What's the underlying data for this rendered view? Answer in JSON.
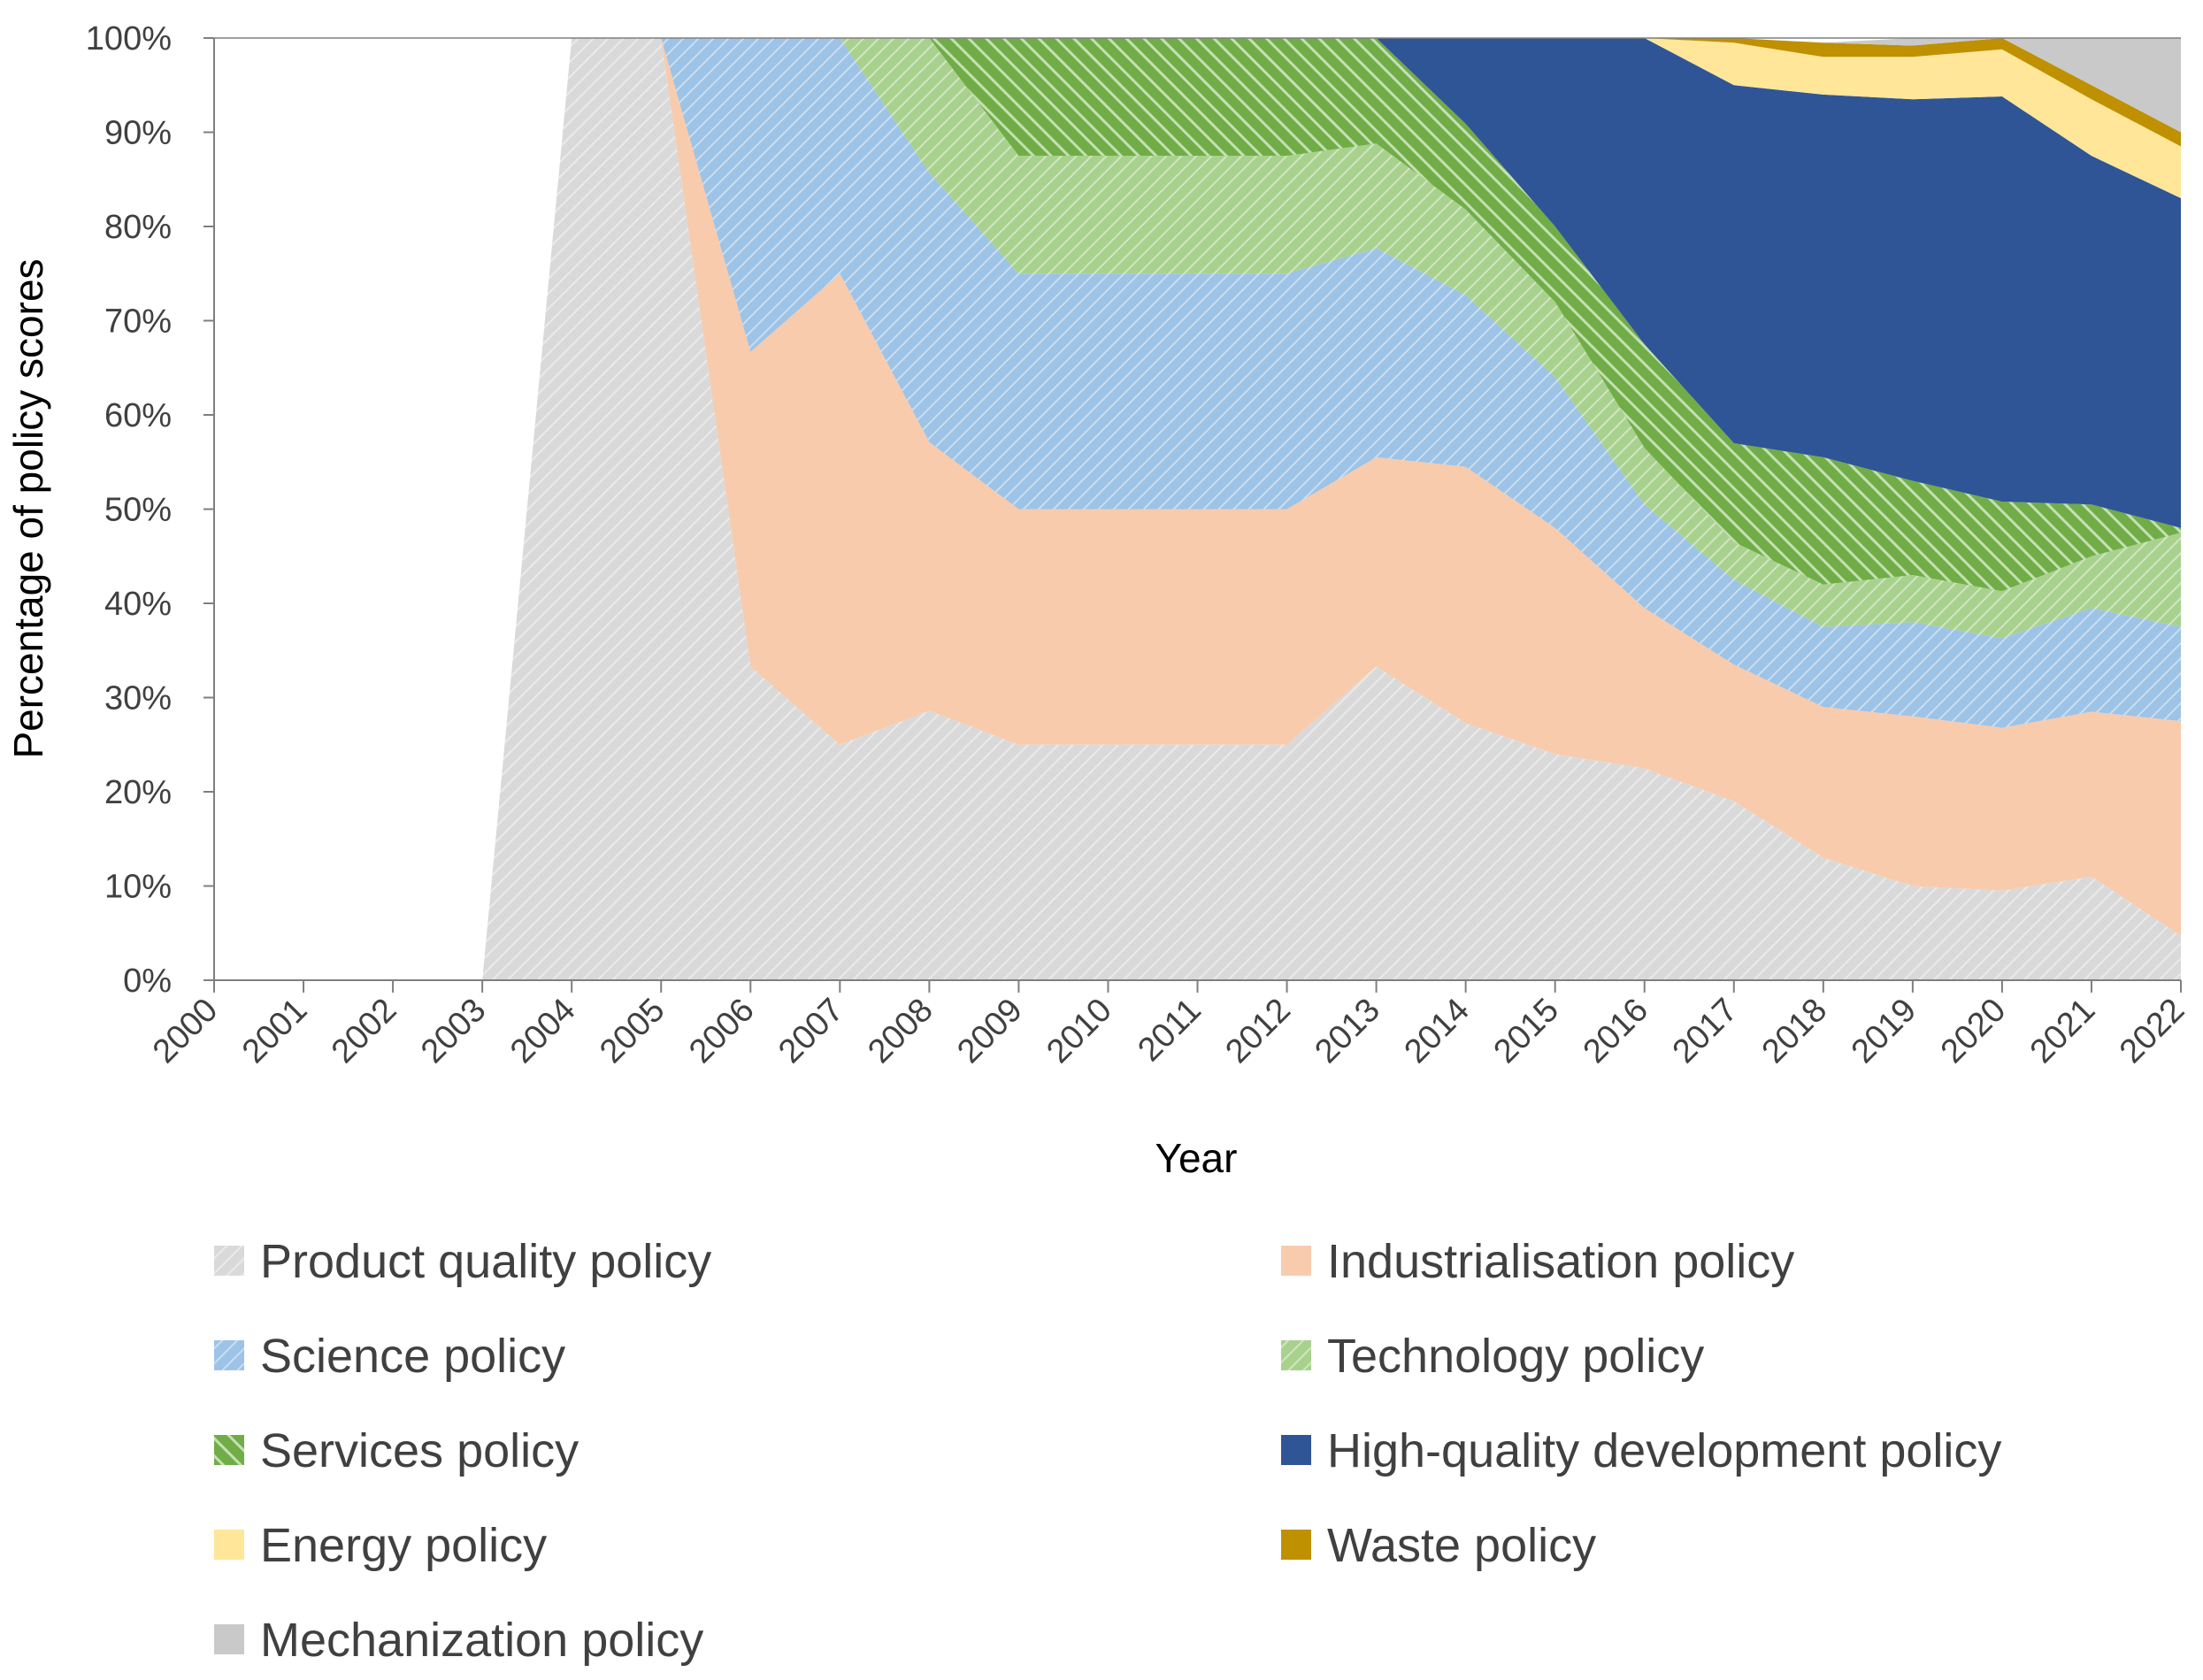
{
  "chart_data": {
    "type": "area",
    "stacked": true,
    "normalized": true,
    "title": "",
    "xlabel": "Year",
    "ylabel": "Percentage of policy scores",
    "ylim": [
      0,
      100
    ],
    "yticks": [
      "0%",
      "10%",
      "20%",
      "30%",
      "40%",
      "50%",
      "60%",
      "70%",
      "80%",
      "90%",
      "100%"
    ],
    "categories": [
      "2000",
      "2001",
      "2002",
      "2003",
      "2004",
      "2005",
      "2006",
      "2007",
      "2008",
      "2009",
      "2010",
      "2011",
      "2012",
      "2013",
      "2014",
      "2015",
      "2016",
      "2017",
      "2018",
      "2019",
      "2020",
      "2021",
      "2022"
    ],
    "legend_position": "bottom",
    "series": [
      {
        "name": "Product quality policy",
        "color": "#d9d9d9",
        "pattern": "diagonal-light",
        "values": [
          0,
          0,
          0,
          0,
          100,
          100,
          33.3,
          25,
          28.6,
          25,
          25,
          25,
          25,
          33.3,
          27.3,
          24,
          22.5,
          19,
          13,
          10,
          9.5,
          11,
          4.7
        ]
      },
      {
        "name": "Industrialisation policy",
        "color": "#f8cbad",
        "pattern": "solid",
        "values": [
          0,
          0,
          0,
          0,
          0,
          0,
          33.4,
          50,
          28.5,
          25,
          25,
          25,
          25,
          22.2,
          27.2,
          24,
          17,
          14.5,
          16,
          18,
          17.3,
          17.5,
          22.8
        ]
      },
      {
        "name": "Science policy",
        "color": "#9dc3e6",
        "pattern": "diagonal-light",
        "values": [
          0,
          0,
          0,
          0,
          0,
          0,
          33.3,
          25,
          28.6,
          25,
          25,
          25,
          25,
          22.2,
          18.2,
          16,
          11,
          9,
          8.5,
          10,
          9.5,
          11,
          10
        ]
      },
      {
        "name": "Technology policy",
        "color": "#a9d18e",
        "pattern": "diagonal-light",
        "values": [
          0,
          0,
          0,
          0,
          0,
          0,
          0,
          0,
          14.3,
          12.5,
          12.5,
          12.5,
          12.5,
          11.1,
          9.1,
          8,
          6,
          4,
          4.5,
          5,
          5,
          5.5,
          10
        ]
      },
      {
        "name": "Services policy",
        "color": "#70ad47",
        "pattern": "diagonal-bold",
        "values": [
          0,
          0,
          0,
          0,
          0,
          0,
          0,
          0,
          0,
          12.5,
          12.5,
          12.5,
          12.5,
          11.2,
          9.1,
          8,
          11,
          10.5,
          13.5,
          10,
          9.5,
          5.5,
          0.5
        ]
      },
      {
        "name": "High-quality development policy",
        "color": "#2f5597",
        "pattern": "solid",
        "values": [
          0,
          0,
          0,
          0,
          0,
          0,
          0,
          0,
          0,
          0,
          0,
          0,
          0,
          0,
          9.1,
          20,
          32.5,
          38,
          38.5,
          40.5,
          43,
          37,
          35
        ]
      },
      {
        "name": "Energy policy",
        "color": "#ffe699",
        "pattern": "solid",
        "values": [
          0,
          0,
          0,
          0,
          0,
          0,
          0,
          0,
          0,
          0,
          0,
          0,
          0,
          0,
          0,
          0,
          0,
          4.5,
          4,
          4.5,
          5,
          6,
          5.5
        ]
      },
      {
        "name": "Waste policy",
        "color": "#bf9000",
        "pattern": "solid",
        "values": [
          0,
          0,
          0,
          0,
          0,
          0,
          0,
          0,
          0,
          0,
          0,
          0,
          0,
          0,
          0,
          0,
          0,
          0.5,
          1.5,
          1.2,
          1.2,
          1.5,
          1.5
        ]
      },
      {
        "name": "Mechanization policy",
        "color": "#c9c9c9",
        "pattern": "solid",
        "values": [
          0,
          0,
          0,
          0,
          0,
          0,
          0,
          0,
          0,
          0,
          0,
          0,
          0,
          0,
          0,
          0,
          0,
          0,
          0,
          0.8,
          0,
          5,
          10
        ]
      }
    ]
  }
}
